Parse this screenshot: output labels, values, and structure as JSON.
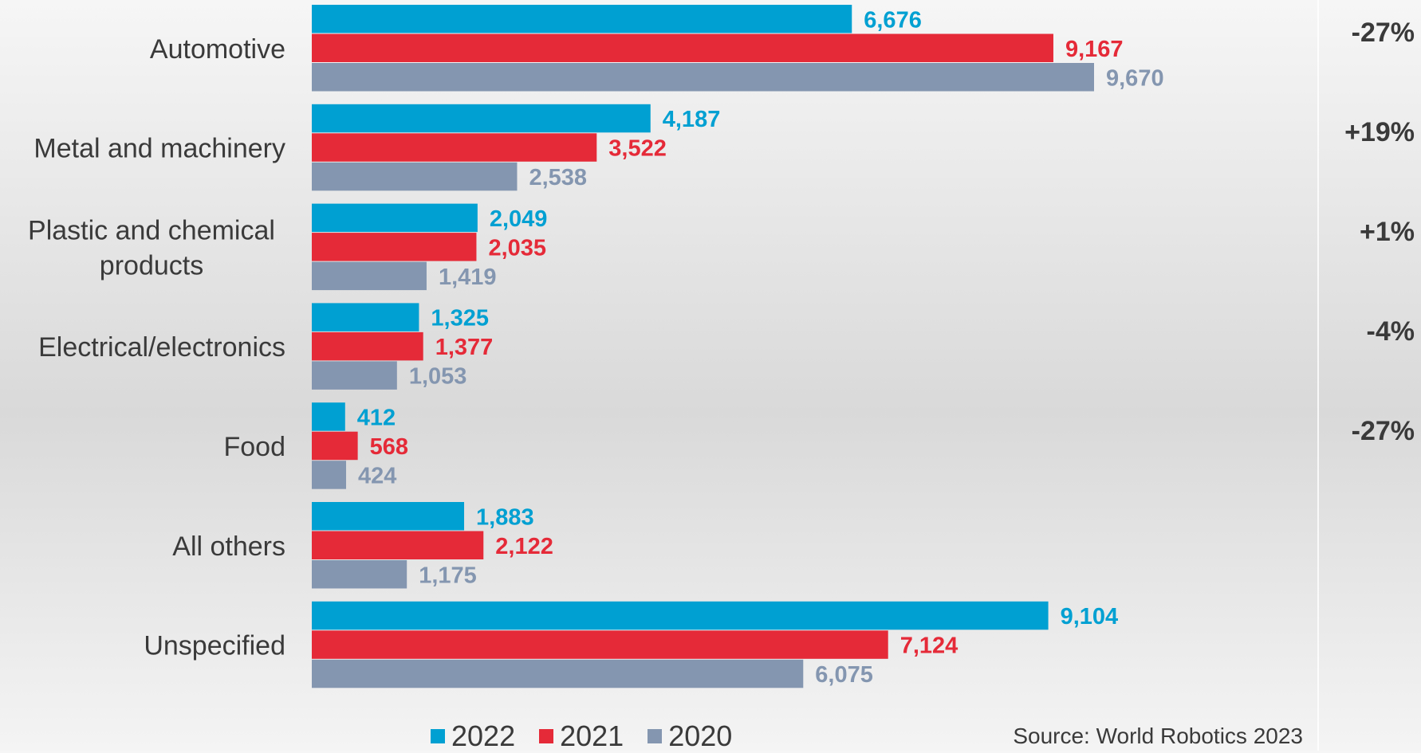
{
  "chart_data": {
    "type": "bar",
    "orientation": "horizontal",
    "categories": [
      [
        "Automotive"
      ],
      [
        "Metal and machinery"
      ],
      [
        "Plastic and chemical",
        "products"
      ],
      [
        "Electrical/electronics"
      ],
      [
        "Food"
      ],
      [
        "All others"
      ],
      [
        "Unspecified"
      ]
    ],
    "series": [
      {
        "name": "2022",
        "color": "#00a0d2",
        "values": [
          6676,
          4187,
          2049,
          1325,
          412,
          1883,
          9104
        ],
        "labels": [
          "6,676",
          "4,187",
          "2,049",
          "1,325",
          "412",
          "1,883",
          "9,104"
        ]
      },
      {
        "name": "2021",
        "color": "#e52a38",
        "values": [
          9167,
          3522,
          2035,
          1377,
          568,
          2122,
          7124
        ],
        "labels": [
          "9,167",
          "3,522",
          "2,035",
          "1,377",
          "568",
          "2,122",
          "7,124"
        ]
      },
      {
        "name": "2020",
        "color": "#8496b0",
        "values": [
          9670,
          2538,
          1419,
          1053,
          424,
          1175,
          6075
        ],
        "labels": [
          "9,670",
          "2,538",
          "1,419",
          "1,053",
          "424",
          "1,175",
          "6,075"
        ]
      }
    ],
    "xlim": [
      0,
      12000
    ],
    "grid": false,
    "legend_position": "bottom",
    "changes": [
      "-27%",
      "+19%",
      "+1%",
      "-4%",
      "-27%"
    ]
  },
  "source": "Source: World Robotics 2023"
}
